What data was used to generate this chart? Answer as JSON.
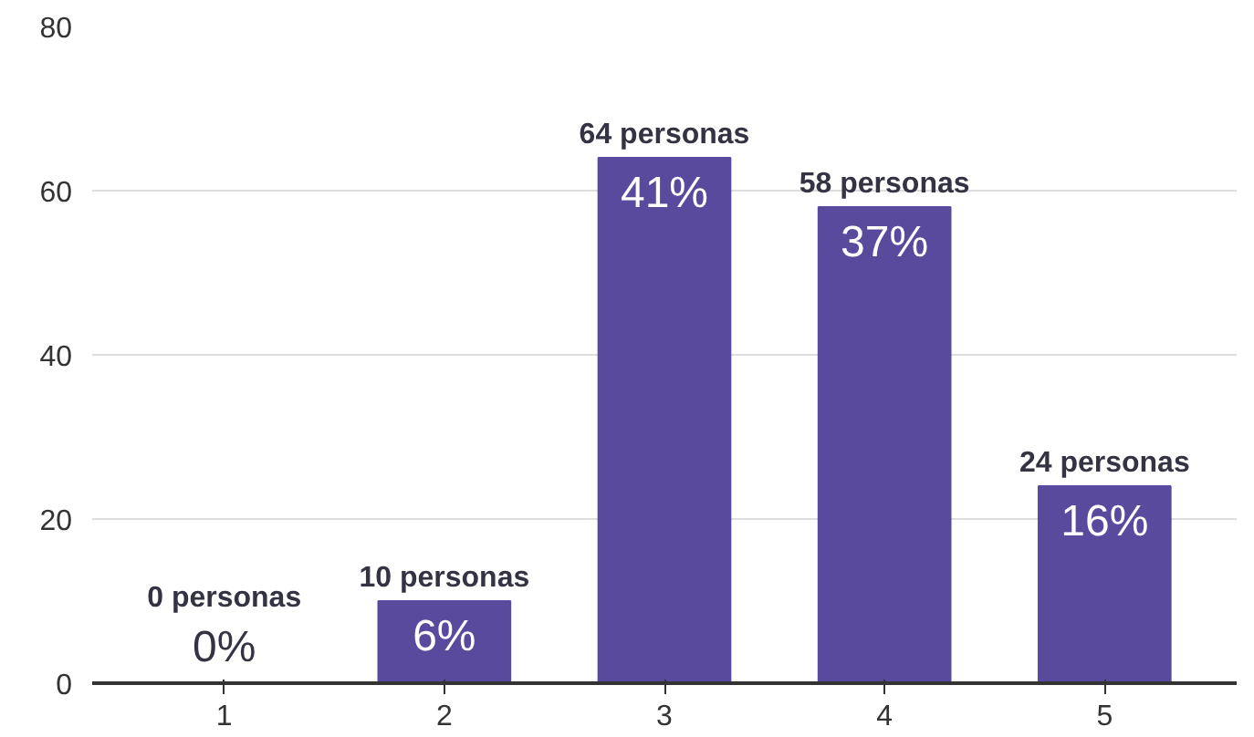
{
  "chart_data": {
    "type": "bar",
    "categories": [
      "1",
      "2",
      "3",
      "4",
      "5"
    ],
    "values": [
      0,
      10,
      64,
      58,
      24
    ],
    "color": "#5a4a9e",
    "value_labels": [
      "0 personas",
      "10 personas",
      "64 personas",
      "58 personas",
      "24 personas"
    ],
    "annotations": [
      {
        "text": "0%",
        "x": "1",
        "y": 0
      },
      {
        "text": "6%",
        "x": "2",
        "y": 10
      },
      {
        "text": "41%",
        "x": "3",
        "y": 64
      },
      {
        "text": "37%",
        "x": "4",
        "y": 58
      },
      {
        "text": "16%",
        "x": "5",
        "y": 24
      }
    ],
    "ylim": [
      0,
      80
    ],
    "yticks": [
      0,
      20,
      40,
      60,
      80
    ],
    "grid": "y"
  }
}
